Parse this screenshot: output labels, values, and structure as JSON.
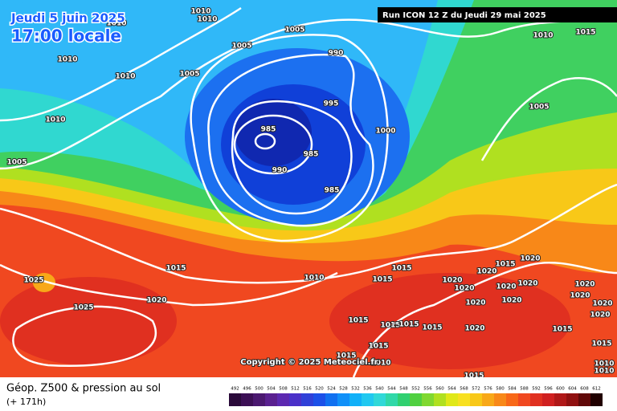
{
  "header": {
    "date": "Jeudi 5 juin 2025",
    "time": "17:00 locale",
    "run": "Run ICON 12 Z du Jeudi 29 mai 2025"
  },
  "map": {
    "isobar_labels": [
      1010,
      1010,
      1010,
      1005,
      1005,
      990,
      1010,
      1015,
      1010,
      1010,
      1005,
      995,
      1005,
      1010,
      985,
      1000,
      985,
      1005,
      990,
      985,
      1015,
      1015,
      1015,
      1020,
      1020,
      1025,
      1010,
      1015,
      1020,
      1020,
      1020,
      1020,
      1020,
      1020,
      1025,
      1020,
      1020,
      1020,
      1020,
      1015,
      1015,
      1015,
      1015,
      1020,
      1015,
      1020,
      1015,
      1015,
      1015,
      1010,
      1010,
      1010,
      1015
    ],
    "copyright": "Copyright © 2025 Meteociel.fr"
  },
  "footer": {
    "title": "Géop. Z500 & pression au sol",
    "lead": "(+ 171h)"
  },
  "legend": {
    "ticks": [
      492,
      496,
      500,
      504,
      508,
      512,
      516,
      520,
      524,
      528,
      532,
      536,
      540,
      544,
      548,
      552,
      556,
      560,
      564,
      568,
      572,
      576,
      580,
      584,
      588,
      592,
      596,
      600,
      604,
      608,
      612
    ],
    "colors": [
      "#2a0a3a",
      "#3c0f55",
      "#4b1870",
      "#5a2090",
      "#5c28b0",
      "#4a30c8",
      "#3040d8",
      "#1c50e8",
      "#1070f0",
      "#1090f8",
      "#10b0f8",
      "#20c8f0",
      "#30d8d8",
      "#30d8a8",
      "#30d070",
      "#50d040",
      "#80d830",
      "#b0e020",
      "#e0e818",
      "#f8e020",
      "#f8c818",
      "#f8a818",
      "#f88818",
      "#f86818",
      "#f04820",
      "#e03020",
      "#d02020",
      "#b01818",
      "#901010",
      "#600808",
      "#200000"
    ]
  }
}
